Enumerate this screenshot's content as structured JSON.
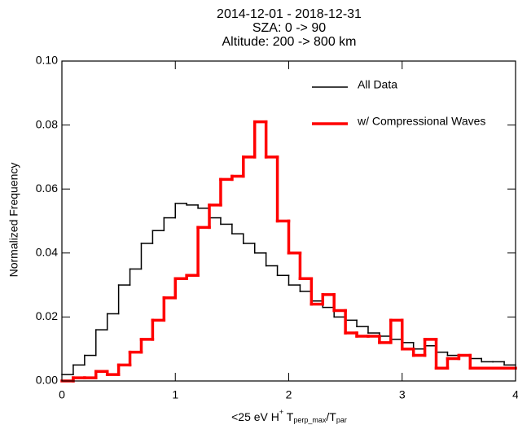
{
  "chart_data": {
    "type": "step-histogram",
    "title": [
      "2014-12-01 - 2018-12-31",
      "SZA: 0 -> 90",
      "Altitude: 200 -> 800 km"
    ],
    "x_label": [
      "<25 eV H",
      "+",
      " T",
      "perp_max",
      "/T",
      "par"
    ],
    "y_label": "Normalized Frequency",
    "bins": [
      0,
      0.1,
      0.2,
      0.3,
      0.4,
      0.5,
      0.6,
      0.7,
      0.8,
      0.9,
      1.0,
      1.1,
      1.2,
      1.3,
      1.4,
      1.5,
      1.6,
      1.7,
      1.8,
      1.9,
      2.0,
      2.1,
      2.2,
      2.3,
      2.4,
      2.5,
      2.6,
      2.7,
      2.8,
      2.9,
      3.0,
      3.1,
      3.2,
      3.3,
      3.4,
      3.5,
      3.6,
      3.7,
      3.8,
      3.9,
      4.0
    ],
    "series": [
      {
        "name": "All Data",
        "color": "#000000",
        "width": 1.5,
        "values": [
          0.002,
          0.005,
          0.008,
          0.016,
          0.021,
          0.03,
          0.035,
          0.043,
          0.047,
          0.051,
          0.0555,
          0.055,
          0.054,
          0.051,
          0.049,
          0.046,
          0.043,
          0.04,
          0.036,
          0.033,
          0.03,
          0.028,
          0.025,
          0.023,
          0.02,
          0.019,
          0.017,
          0.015,
          0.014,
          0.013,
          0.012,
          0.01,
          0.011,
          0.009,
          0.008,
          0.008,
          0.007,
          0.006,
          0.006,
          0.005
        ]
      },
      {
        "name": "w/ Compressional Waves",
        "color": "#ff0000",
        "width": 3.5,
        "values": [
          0.0,
          0.001,
          0.001,
          0.003,
          0.002,
          0.005,
          0.009,
          0.013,
          0.019,
          0.026,
          0.032,
          0.033,
          0.048,
          0.055,
          0.063,
          0.064,
          0.07,
          0.081,
          0.07,
          0.05,
          0.04,
          0.032,
          0.024,
          0.027,
          0.022,
          0.015,
          0.014,
          0.014,
          0.012,
          0.019,
          0.01,
          0.008,
          0.013,
          0.004,
          0.007,
          0.008,
          0.004,
          0.004,
          0.004,
          0.004
        ]
      }
    ],
    "xlim": [
      0,
      4
    ],
    "xticks": [
      0,
      1,
      2,
      3,
      4
    ],
    "ylim": [
      0,
      0.1
    ],
    "yticks": [
      {
        "value": 0,
        "label": "0.00"
      },
      {
        "value": 0.02,
        "label": "0.02"
      },
      {
        "value": 0.04,
        "label": "0.04"
      },
      {
        "value": 0.06,
        "label": "0.06"
      },
      {
        "value": 0.08,
        "label": "0.08"
      },
      {
        "value": 0.1,
        "label": "0.10"
      }
    ],
    "legend": "top-right"
  }
}
